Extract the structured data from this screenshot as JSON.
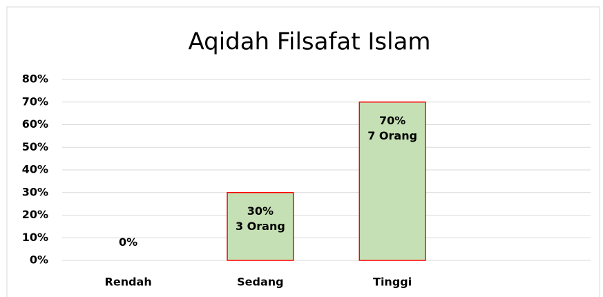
{
  "chart_data": {
    "type": "bar",
    "title": "Aqidah Filsafat Islam",
    "categories": [
      "Rendah",
      "Sedang",
      "Tinggi",
      null
    ],
    "values": [
      0,
      30,
      70,
      null
    ],
    "value_labels": [
      "0%",
      "30%\n3 Orang",
      "70%\n7 Orang",
      null
    ],
    "color": "#c5e0b4",
    "edge_color": "#ff0000",
    "ylim": [
      0,
      80
    ],
    "yticks": [
      {
        "value": 0,
        "label": "0%"
      },
      {
        "value": 10,
        "label": "10%"
      },
      {
        "value": 20,
        "label": "20%"
      },
      {
        "value": 30,
        "label": "30%"
      },
      {
        "value": 40,
        "label": "40%"
      },
      {
        "value": 50,
        "label": "50%"
      },
      {
        "value": 60,
        "label": "60%"
      },
      {
        "value": 70,
        "label": "70%"
      },
      {
        "value": 80,
        "label": "80%"
      }
    ],
    "grid": true
  }
}
